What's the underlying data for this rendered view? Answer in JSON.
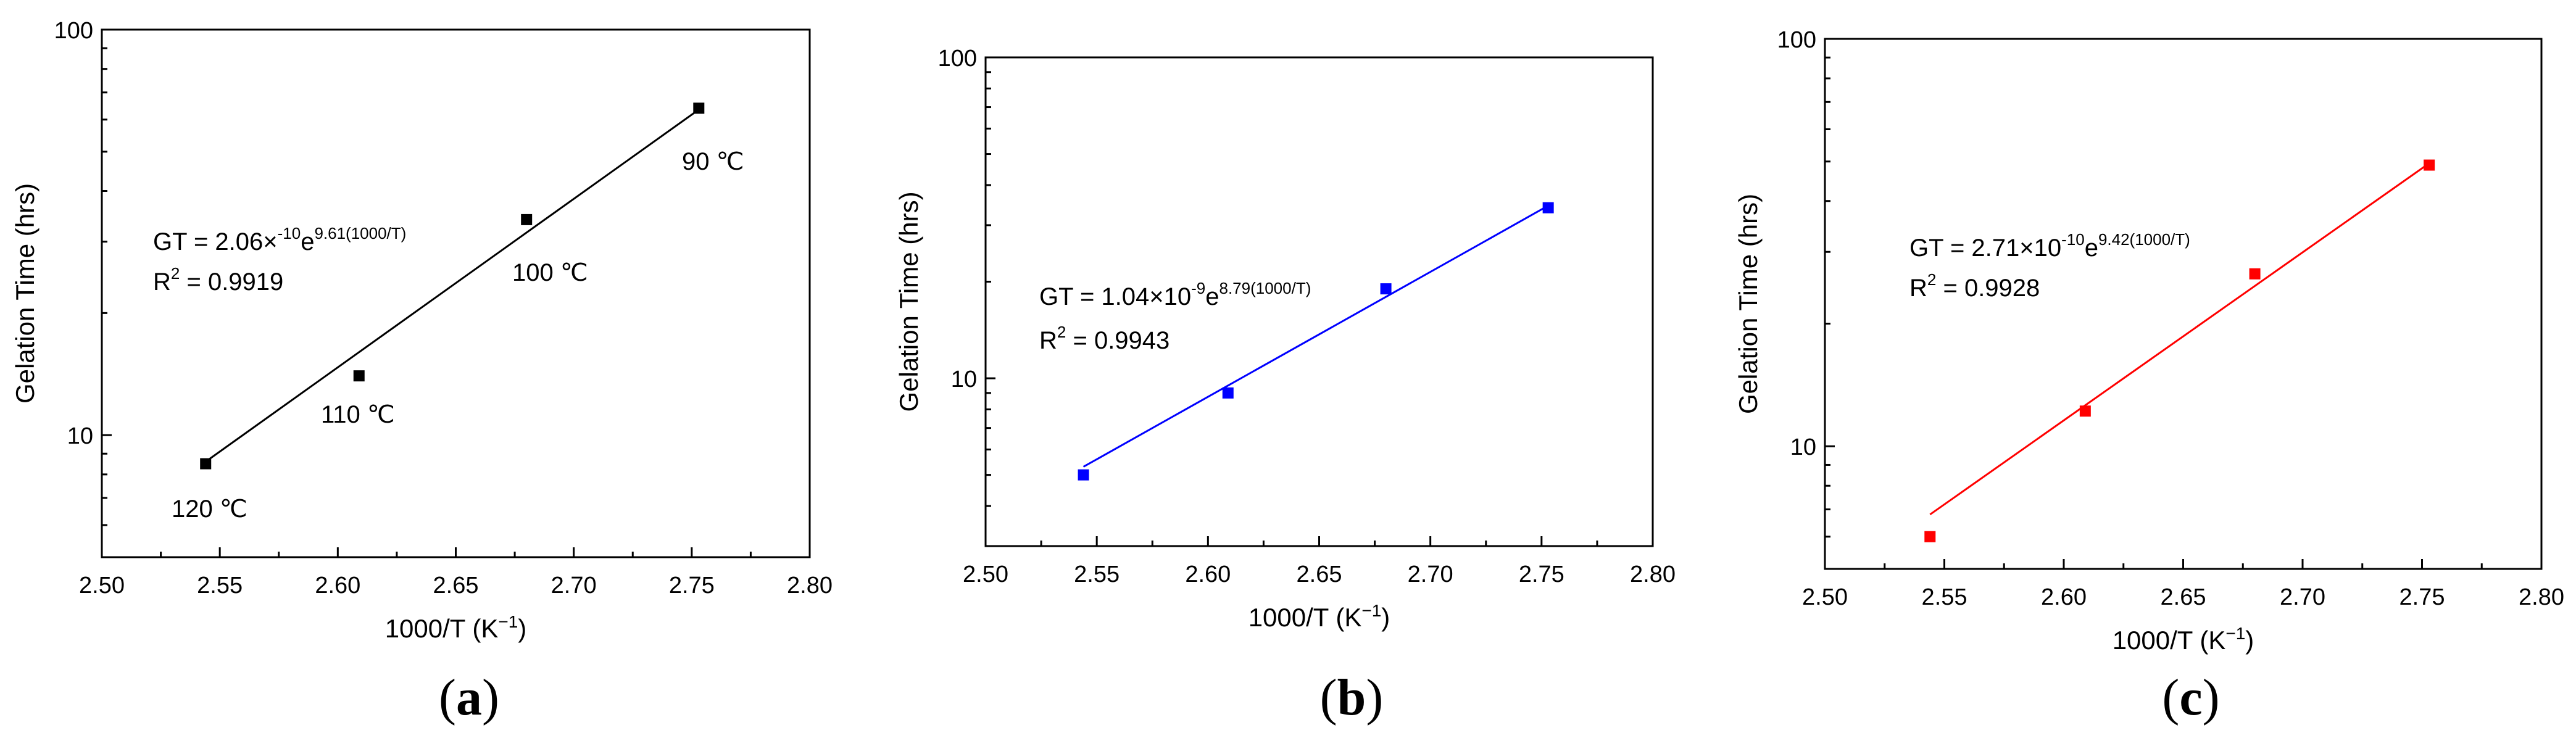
{
  "chart_data": [
    {
      "panel": "a",
      "type": "scatter",
      "title": "",
      "xlabel": "1000/T (K⁻¹)",
      "ylabel": "Gelation Time (hrs)",
      "xlim": [
        2.5,
        2.8
      ],
      "ylim": [
        5,
        100
      ],
      "yscale": "log",
      "xticks": [
        "2.50",
        "2.55",
        "2.60",
        "2.65",
        "2.70",
        "2.75",
        "2.80"
      ],
      "yticks": [
        {
          "value": 10,
          "label": "10"
        },
        {
          "value": 100,
          "label": "100"
        }
      ],
      "color": "#000000",
      "x": [
        2.544,
        2.609,
        2.68,
        2.753
      ],
      "y": [
        8.5,
        14.0,
        34.0,
        64.0
      ],
      "point_labels": [
        "120 ℃",
        "110 ℃",
        "100 ℃",
        "90 ℃"
      ],
      "fit": {
        "x": [
          2.544,
          2.753
        ],
        "y": [
          8.6,
          63.5
        ]
      },
      "equation": {
        "prefix": "GT = 2.06×",
        "exp1": "-10",
        "mid": "e",
        "exp2": "9.61(1000/T)"
      },
      "r2": {
        "prefix": "R",
        "sup": "2",
        "suffix": " = 0.9919"
      },
      "caption": {
        "open": "(",
        "letter": "a",
        "close": ")"
      }
    },
    {
      "panel": "b",
      "type": "scatter",
      "title": "",
      "xlabel": "1000/T (K⁻¹)",
      "ylabel": "Gelation Time (hrs)",
      "xlim": [
        2.5,
        2.8
      ],
      "ylim": [
        3,
        100
      ],
      "yscale": "log",
      "xticks": [
        "2.50",
        "2.55",
        "2.60",
        "2.65",
        "2.70",
        "2.75",
        "2.80"
      ],
      "yticks": [
        {
          "value": 10,
          "label": "10"
        },
        {
          "value": 100,
          "label": "100"
        }
      ],
      "color": "#0000ff",
      "x": [
        2.544,
        2.609,
        2.68,
        2.753
      ],
      "y": [
        5.0,
        9.0,
        19.0,
        34.0
      ],
      "point_labels": [],
      "fit": {
        "x": [
          2.544,
          2.753
        ],
        "y": [
          5.3,
          34.5
        ]
      },
      "equation": {
        "prefix": "GT = 1.04×10",
        "exp1": "-9",
        "mid": "e",
        "exp2": "8.79(1000/T)"
      },
      "r2": {
        "prefix": "R",
        "sup": "2",
        "suffix": " = 0.9943"
      },
      "caption": {
        "open": "(",
        "letter": "b",
        "close": ")"
      }
    },
    {
      "panel": "c",
      "type": "scatter",
      "title": "",
      "xlabel": "1000/T (K⁻¹)",
      "ylabel": "Gelation Time (hrs)",
      "xlim": [
        2.5,
        2.8
      ],
      "ylim": [
        5,
        100
      ],
      "yscale": "log",
      "xticks": [
        "2.50",
        "2.55",
        "2.60",
        "2.65",
        "2.70",
        "2.75",
        "2.80"
      ],
      "yticks": [
        {
          "value": 10,
          "label": "10"
        },
        {
          "value": 100,
          "label": "100"
        }
      ],
      "color": "#ff0000",
      "x": [
        2.544,
        2.609,
        2.68,
        2.753
      ],
      "y": [
        6.0,
        12.2,
        26.5,
        49.0
      ],
      "point_labels": [],
      "fit": {
        "x": [
          2.544,
          2.753
        ],
        "y": [
          6.8,
          49.5
        ]
      },
      "equation": {
        "prefix": "GT = 2.71×10",
        "exp1": "-10",
        "mid": "e",
        "exp2": "9.42(1000/T)"
      },
      "r2": {
        "prefix": "R",
        "sup": "2",
        "suffix": " = 0.9928"
      },
      "caption": {
        "open": "(",
        "letter": "c",
        "close": ")"
      }
    }
  ]
}
